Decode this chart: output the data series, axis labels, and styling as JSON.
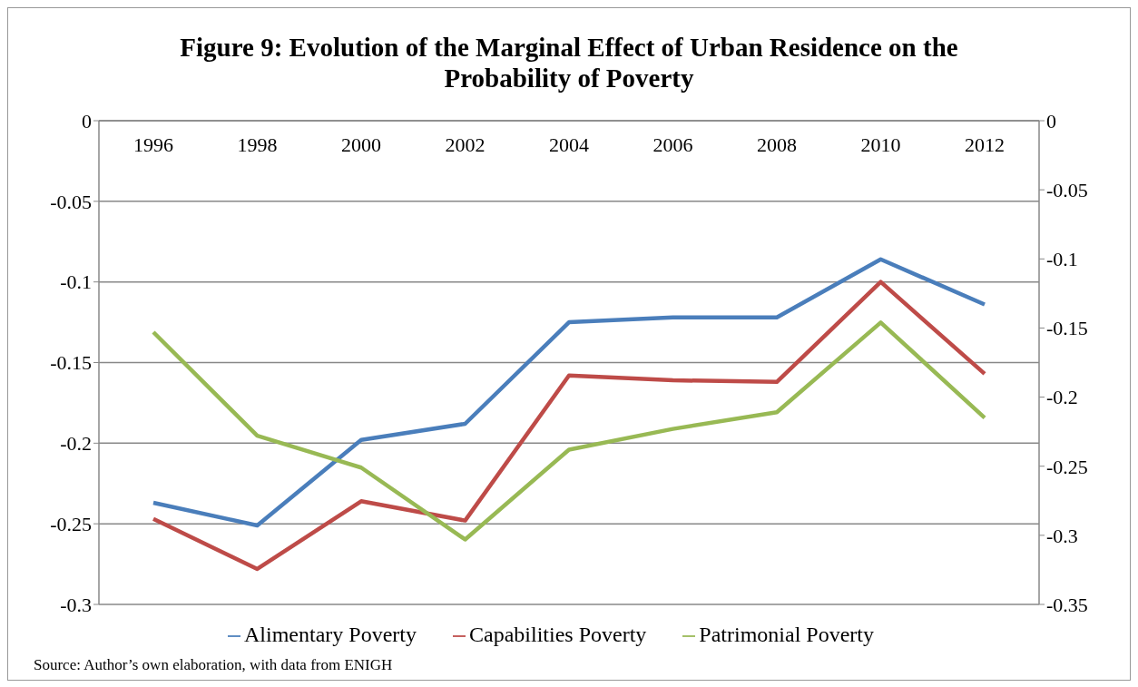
{
  "chart_data": {
    "type": "line",
    "title": "Figure 9: Evolution of the Marginal Effect of Urban Residence on the Probability of Poverty",
    "categories": [
      "1996",
      "1998",
      "2000",
      "2002",
      "2004",
      "2006",
      "2008",
      "2010",
      "2012"
    ],
    "series": [
      {
        "name": "Alimentary Poverty",
        "color": "#4a7ebb",
        "values": [
          -0.237,
          -0.251,
          -0.198,
          -0.188,
          -0.125,
          -0.122,
          -0.122,
          -0.086,
          -0.114
        ]
      },
      {
        "name": "Capabilities Poverty",
        "color": "#be4b48",
        "values": [
          -0.247,
          -0.278,
          -0.236,
          -0.248,
          -0.158,
          -0.161,
          -0.162,
          -0.1,
          -0.157
        ]
      },
      {
        "name": "Patrimonial Poverty",
        "color": "#98b954",
        "axis": "y2",
        "values": [
          -0.153,
          -0.228,
          -0.251,
          -0.303,
          -0.238,
          -0.223,
          -0.211,
          -0.146,
          -0.215
        ]
      }
    ],
    "ylim": [
      -0.3,
      0
    ],
    "yticks": [
      0,
      -0.05,
      -0.1,
      -0.15,
      -0.2,
      -0.25,
      -0.3
    ],
    "y2lim": [
      -0.35,
      0
    ],
    "y2ticks": [
      0,
      -0.05,
      -0.1,
      -0.15,
      -0.2,
      -0.25,
      -0.3,
      -0.35
    ],
    "grid": "y",
    "legend": "bottom",
    "marker": "none",
    "line_style": "solid",
    "annotations": [
      "Source: Author’s own elaboration, with data from ENIGH"
    ]
  }
}
